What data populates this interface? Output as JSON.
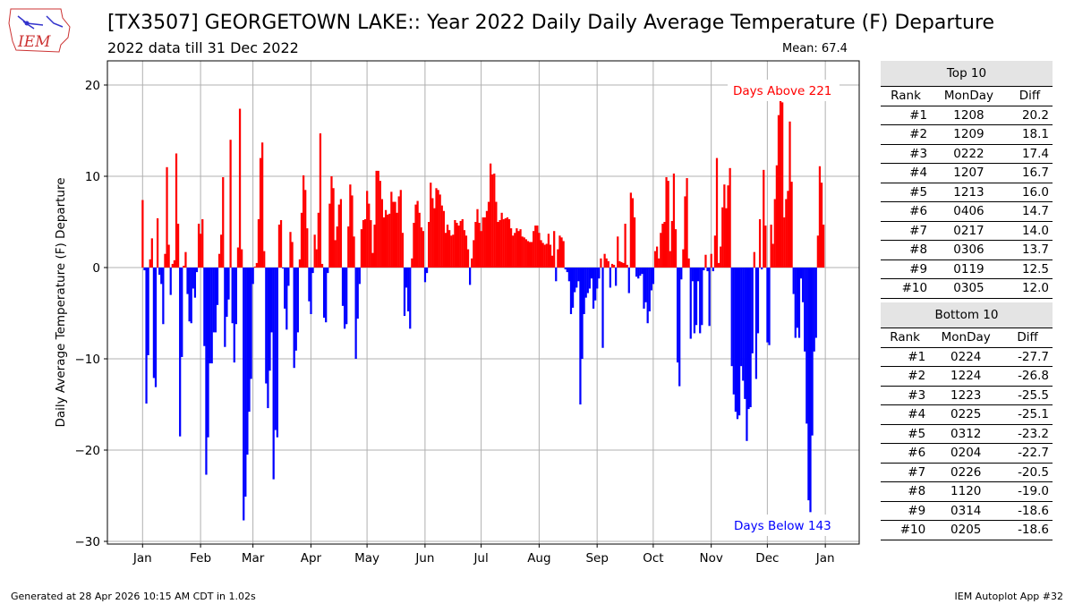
{
  "header": {
    "title": "[TX3507] GEORGETOWN LAKE:: Year 2022 Daily Daily Average Temperature (F) Departure",
    "subtitle": "2022 data till 31 Dec 2022",
    "mean_label": "Mean: 67.4"
  },
  "logo": {
    "text": "IEM"
  },
  "footer": {
    "left": "Generated at 28 Apr 2026 10:15 AM CDT in 1.02s",
    "right": "IEM Autoplot App #32"
  },
  "colors": {
    "above": "#ff0000",
    "below": "#0000ff",
    "grid": "#b0b0b0"
  },
  "chart_data": {
    "type": "bar",
    "title": "[TX3507] GEORGETOWN LAKE:: Year 2022 Daily Daily Average Temperature (F) Departure",
    "xlabel": "",
    "ylabel": "Daily Average Temperature (F) Departure",
    "ylim": [
      -30.3,
      22.6
    ],
    "yticks": [
      {
        "v": -30,
        "label": "−30"
      },
      {
        "v": -20,
        "label": "−20"
      },
      {
        "v": -10,
        "label": "−10"
      },
      {
        "v": 0,
        "label": "0"
      },
      {
        "v": 10,
        "label": "10"
      },
      {
        "v": 20,
        "label": "20"
      }
    ],
    "xticks": [
      {
        "d": 0,
        "label": "Jan"
      },
      {
        "d": 31,
        "label": "Feb"
      },
      {
        "d": 59,
        "label": "Mar"
      },
      {
        "d": 90,
        "label": "Apr"
      },
      {
        "d": 120,
        "label": "May"
      },
      {
        "d": 151,
        "label": "Jun"
      },
      {
        "d": 181,
        "label": "Jul"
      },
      {
        "d": 212,
        "label": "Aug"
      },
      {
        "d": 243,
        "label": "Sep"
      },
      {
        "d": 273,
        "label": "Oct"
      },
      {
        "d": 304,
        "label": "Nov"
      },
      {
        "d": 334,
        "label": "Dec"
      },
      {
        "d": 365,
        "label": "Jan"
      }
    ],
    "grid": true,
    "annotations": {
      "above": "Days Above 221",
      "below": "Days Below 143"
    },
    "values": [
      7.4,
      -0.3,
      -14.9,
      -9.6,
      0.9,
      3.2,
      -12.1,
      -13.1,
      5.4,
      -0.8,
      -1.8,
      -6.2,
      1.5,
      11.0,
      2.5,
      -3.0,
      0.4,
      0.8,
      12.5,
      4.8,
      -18.5,
      -9.8,
      0.2,
      1.7,
      -2.9,
      -5.9,
      -6.1,
      -2.3,
      -3.3,
      -0.5,
      4.8,
      3.7,
      5.3,
      -8.6,
      -22.7,
      -18.6,
      -10.5,
      -10.5,
      -7.1,
      -7.1,
      -4.1,
      1.5,
      3.6,
      9.9,
      -8.7,
      -5.4,
      -3.5,
      14.0,
      -6.1,
      -10.4,
      -6.2,
      2.2,
      17.4,
      2.0,
      -27.7,
      -25.1,
      -20.5,
      -15.8,
      -12.2,
      -1.8,
      0.1,
      0.5,
      5.3,
      12.0,
      13.7,
      1.8,
      -12.7,
      -15.4,
      -11.3,
      -7.1,
      -23.2,
      -17.8,
      -18.6,
      4.7,
      5.2,
      -0.1,
      -4.5,
      -6.8,
      -2.0,
      3.9,
      2.8,
      -11.0,
      -9.1,
      -7.1,
      0.9,
      6.0,
      10.1,
      8.5,
      4.3,
      -3.7,
      -5.1,
      -0.6,
      3.6,
      2.0,
      6.0,
      14.7,
      0.4,
      -5.5,
      -6.0,
      -0.6,
      7.0,
      10.0,
      8.7,
      3.0,
      4.5,
      6.9,
      7.5,
      -4.2,
      -6.7,
      -6.2,
      4.5,
      9.1,
      7.9,
      3.4,
      -10.0,
      -5.6,
      -1.8,
      4.2,
      5.2,
      5.3,
      8.4,
      7.0,
      5.2,
      1.6,
      4.7,
      10.6,
      10.6,
      9.5,
      7.5,
      5.5,
      6.3,
      5.8,
      5.9,
      8.3,
      7.2,
      7.2,
      6.0,
      7.8,
      8.5,
      3.8,
      -5.3,
      -2.2,
      -4.8,
      -6.7,
      1.0,
      4.9,
      6.9,
      7.3,
      6.0,
      4.4,
      4.0,
      -1.6,
      -0.6,
      5.0,
      9.3,
      7.6,
      6.5,
      8.7,
      8.5,
      8.0,
      6.8,
      6.2,
      3.8,
      4.7,
      4.1,
      3.5,
      3.6,
      5.2,
      4.9,
      4.6,
      5.1,
      5.3,
      4.1,
      3.5,
      2.0,
      -1.9,
      1.0,
      3.0,
      5.0,
      6.4,
      4.9,
      4.0,
      5.5,
      5.5,
      6.2,
      7.2,
      11.4,
      10.2,
      10.3,
      7.2,
      5.0,
      5.2,
      6.0,
      5.3,
      5.4,
      5.5,
      5.3,
      4.3,
      3.5,
      3.8,
      4.3,
      4.0,
      4.2,
      3.4,
      3.3,
      3.1,
      2.9,
      2.8,
      2.8,
      4.0,
      4.6,
      4.6,
      3.8,
      3.0,
      2.7,
      2.5,
      2.6,
      3.7,
      2.5,
      1.3,
      4.0,
      -1.5,
      2.0,
      3.5,
      3.3,
      2.9,
      -0.2,
      -0.5,
      -1.5,
      -5.1,
      -4.4,
      -2.7,
      -2.2,
      -1.5,
      -15.0,
      -10.0,
      -5.1,
      -3.3,
      -2.8,
      -2.3,
      -1.2,
      -4.5,
      -3.6,
      -2.3,
      -1.2,
      1.0,
      -8.8,
      1.5,
      1.0,
      0.7,
      -2.2,
      0.4,
      0.3,
      -2.0,
      3.4,
      0.7,
      0.6,
      0.5,
      4.8,
      0.3,
      -2.8,
      8.2,
      7.6,
      5.5,
      -1.0,
      -1.2,
      -0.9,
      -0.7,
      -4.5,
      -3.8,
      -6.1,
      -4.8,
      -2.5,
      -1.8,
      1.8,
      2.3,
      1.0,
      3.8,
      4.8,
      5.0,
      9.9,
      9.5,
      1.8,
      5.1,
      10.3,
      4.2,
      -10.4,
      -13.0,
      -1.3,
      2.0,
      7.8,
      9.8,
      1.0,
      -7.8,
      -1.5,
      -7.2,
      -6.3,
      -1.5,
      -7.2,
      -6.3,
      -0.3,
      1.4,
      -0.4,
      -6.4,
      1.5,
      -0.4,
      3.5,
      12.0,
      0.5,
      2.3,
      6.6,
      9.1,
      6.5,
      9.0,
      10.9,
      -10.8,
      -13.9,
      -15.8,
      -16.6,
      -16.2,
      -10.8,
      -12.4,
      -14.4,
      -19.0,
      -15.5,
      -15.3,
      -9.4,
      1.7,
      -12.2,
      -7.2,
      5.3,
      -0.2,
      10.7,
      4.6,
      -8.2,
      -8.5,
      4.7,
      2.6,
      7.5,
      11.2,
      16.7,
      20.2,
      18.1,
      5.5,
      7.5,
      8.4,
      16.0,
      9.4,
      -2.9,
      -7.7,
      -6.6,
      -7.7,
      -1.2,
      -3.8,
      -9.2,
      -17.1,
      -25.5,
      -26.8,
      -18.4,
      -9.2,
      -7.7,
      3.5,
      11.1,
      9.3,
      4.7
    ]
  },
  "top10": {
    "caption": "Top 10",
    "headers": [
      "Rank",
      "MonDay",
      "Diff"
    ],
    "rows": [
      [
        "#1",
        "1208",
        "20.2"
      ],
      [
        "#2",
        "1209",
        "18.1"
      ],
      [
        "#3",
        "0222",
        "17.4"
      ],
      [
        "#4",
        "1207",
        "16.7"
      ],
      [
        "#5",
        "1213",
        "16.0"
      ],
      [
        "#6",
        "0406",
        "14.7"
      ],
      [
        "#7",
        "0217",
        "14.0"
      ],
      [
        "#8",
        "0306",
        "13.7"
      ],
      [
        "#9",
        "0119",
        "12.5"
      ],
      [
        "#10",
        "0305",
        "12.0"
      ]
    ]
  },
  "bottom10": {
    "caption": "Bottom 10",
    "headers": [
      "Rank",
      "MonDay",
      "Diff"
    ],
    "rows": [
      [
        "#1",
        "0224",
        "-27.7"
      ],
      [
        "#2",
        "1224",
        "-26.8"
      ],
      [
        "#3",
        "1223",
        "-25.5"
      ],
      [
        "#4",
        "0225",
        "-25.1"
      ],
      [
        "#5",
        "0312",
        "-23.2"
      ],
      [
        "#6",
        "0204",
        "-22.7"
      ],
      [
        "#7",
        "0226",
        "-20.5"
      ],
      [
        "#8",
        "1120",
        "-19.0"
      ],
      [
        "#9",
        "0314",
        "-18.6"
      ],
      [
        "#10",
        "0205",
        "-18.6"
      ]
    ]
  }
}
